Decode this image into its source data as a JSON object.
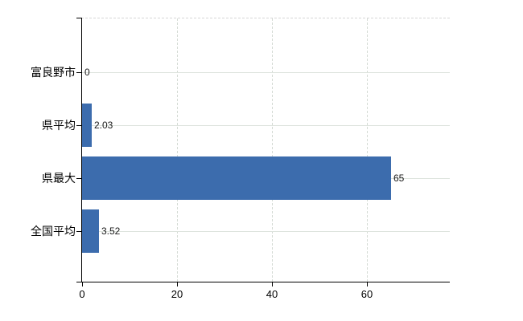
{
  "chart_data": {
    "type": "bar",
    "orientation": "horizontal",
    "title": "",
    "xlabel": "",
    "ylabel": "",
    "categories": [
      "富良野市",
      "県平均",
      "県最大",
      "全国平均"
    ],
    "values": [
      0,
      2.03,
      65,
      3.52
    ],
    "value_labels": [
      "0",
      "2.03",
      "65",
      "3.52"
    ],
    "x_ticks": [
      0,
      20,
      40,
      60
    ],
    "x_tick_labels": [
      "0",
      "20",
      "40",
      "60"
    ],
    "xlim": [
      0,
      77.6
    ],
    "grid": true,
    "legend": false,
    "bar_color": "#3c6cad",
    "axis_color": "#000000",
    "gridline_color": "#dde3dd"
  }
}
